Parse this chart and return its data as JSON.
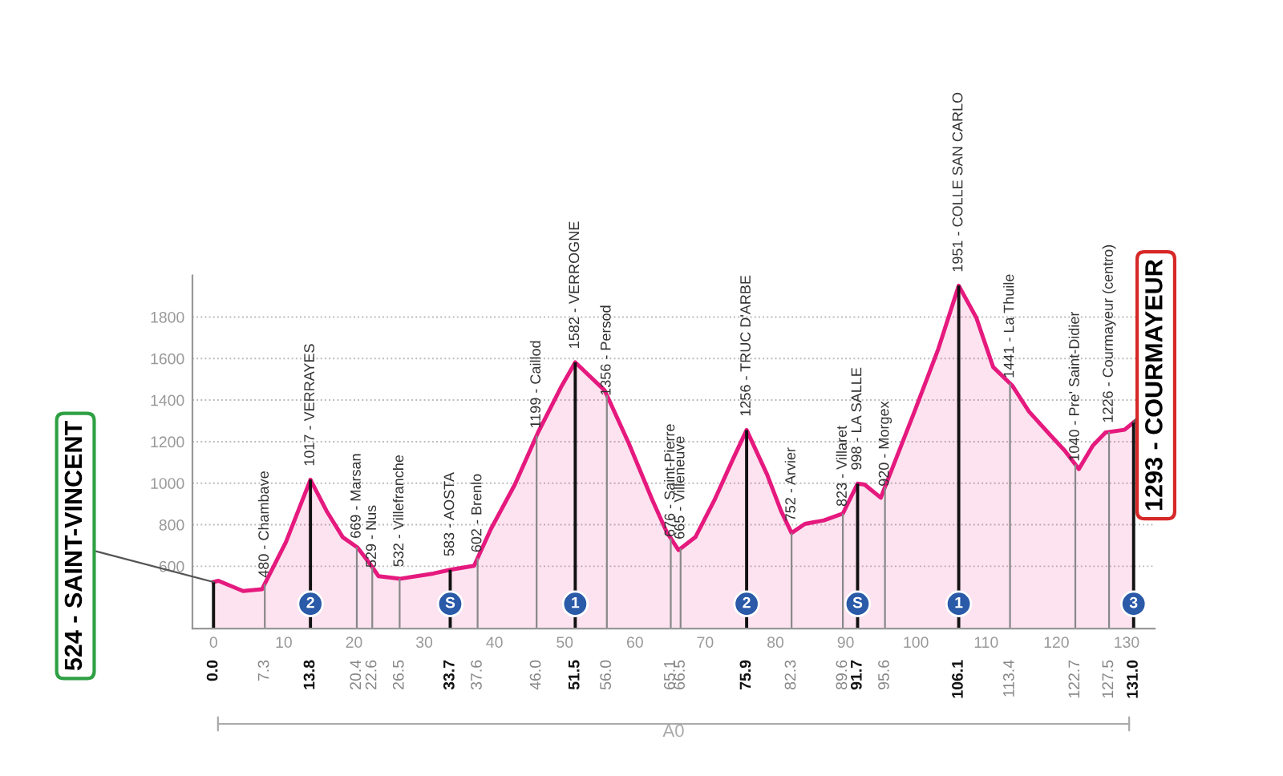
{
  "chart_data": {
    "type": "area",
    "x": [
      0.0,
      0.7,
      4.2,
      6.9,
      10.3,
      13.8,
      16.1,
      18.4,
      20.5,
      22.2,
      23.5,
      26.6,
      31.3,
      33.7,
      37.1,
      39.5,
      42.9,
      46.2,
      49.6,
      51.5,
      55.7,
      59.1,
      62.5,
      64.5,
      66.2,
      68.6,
      71.3,
      74.0,
      75.9,
      78.8,
      80.8,
      82.3,
      84.2,
      86.9,
      89.6,
      91.7,
      92.7,
      95.0,
      99.8,
      103.2,
      106.1,
      108.6,
      111.0,
      113.7,
      116.1,
      118.8,
      121.2,
      123.2,
      125.2,
      127.0,
      129.7,
      131.0
    ],
    "series": [
      {
        "color": "#e5197e",
        "values": [
          524,
          530,
          481,
          489,
          716,
          1017,
          866,
          740,
          690,
          615,
          552,
          540,
          565,
          583,
          602,
          780,
          993,
          1244,
          1470,
          1582,
          1446,
          1194,
          917,
          766,
          678,
          740,
          917,
          1119,
          1256,
          1043,
          866,
          760,
          804,
          821,
          854,
          998,
          993,
          930,
          1345,
          1647,
          1951,
          1797,
          1559,
          1471,
          1345,
          1244,
          1156,
          1068,
          1181,
          1244,
          1257,
          1293
        ]
      }
    ],
    "xlim": [
      -3,
      134
    ],
    "ylim": [
      300,
      2000
    ],
    "xticks": [
      0,
      10,
      20,
      30,
      40,
      50,
      60,
      70,
      80,
      90,
      100,
      110,
      120,
      130
    ],
    "yticks": [
      600,
      800,
      1000,
      1200,
      1400,
      1600,
      1800
    ],
    "grid": "y",
    "ref_lines": [
      {
        "axis": "x",
        "value": 0.0,
        "label": "0.0",
        "color": "#111111"
      },
      {
        "axis": "x",
        "value": 7.3,
        "label": "7.3",
        "color": "#888888"
      },
      {
        "axis": "x",
        "value": 13.8,
        "label": "13.8",
        "color": "#111111"
      },
      {
        "axis": "x",
        "value": 20.4,
        "label": "20.4",
        "color": "#888888"
      },
      {
        "axis": "x",
        "value": 22.6,
        "label": "22.6",
        "color": "#888888"
      },
      {
        "axis": "x",
        "value": 26.5,
        "label": "26.5",
        "color": "#888888"
      },
      {
        "axis": "x",
        "value": 33.7,
        "label": "33.7",
        "color": "#111111"
      },
      {
        "axis": "x",
        "value": 37.6,
        "label": "37.6",
        "color": "#888888"
      },
      {
        "axis": "x",
        "value": 46.0,
        "label": "46.0",
        "color": "#888888"
      },
      {
        "axis": "x",
        "value": 51.5,
        "label": "51.5",
        "color": "#111111"
      },
      {
        "axis": "x",
        "value": 56.0,
        "label": "56.0",
        "color": "#888888"
      },
      {
        "axis": "x",
        "value": 65.1,
        "label": "65.1",
        "color": "#888888"
      },
      {
        "axis": "x",
        "value": 66.5,
        "label": "66.5",
        "color": "#888888"
      },
      {
        "axis": "x",
        "value": 75.9,
        "label": "75.9",
        "color": "#111111"
      },
      {
        "axis": "x",
        "value": 82.3,
        "label": "82.3",
        "color": "#888888"
      },
      {
        "axis": "x",
        "value": 89.6,
        "label": "89.6",
        "color": "#888888"
      },
      {
        "axis": "x",
        "value": 91.7,
        "label": "91.7",
        "color": "#111111"
      },
      {
        "axis": "x",
        "value": 95.6,
        "label": "95.6",
        "color": "#888888"
      },
      {
        "axis": "x",
        "value": 106.1,
        "label": "106.1",
        "color": "#111111"
      },
      {
        "axis": "x",
        "value": 113.4,
        "label": "113.4",
        "color": "#888888"
      },
      {
        "axis": "x",
        "value": 122.7,
        "label": "122.7",
        "color": "#888888"
      },
      {
        "axis": "x",
        "value": 127.5,
        "label": "127.5",
        "color": "#888888"
      },
      {
        "axis": "x",
        "value": 131.0,
        "label": "131.0",
        "color": "#111111"
      }
    ],
    "annotations": [
      {
        "text": "524 - SAINT-VINCENT",
        "x": 0.0,
        "y": 524
      },
      {
        "text": "480 - Chambave",
        "x": 7.3,
        "y": 480
      },
      {
        "text": "1017 - VERRAYES",
        "x": 13.8,
        "y": 1017
      },
      {
        "text": "669 - Marsan",
        "x": 20.4,
        "y": 669
      },
      {
        "text": "529 - Nus",
        "x": 22.6,
        "y": 529
      },
      {
        "text": "532 - Villefranche",
        "x": 26.5,
        "y": 532
      },
      {
        "text": "583 - AOSTA",
        "x": 33.7,
        "y": 583
      },
      {
        "text": "602 - Brenlo",
        "x": 37.6,
        "y": 602
      },
      {
        "text": "1199 - Caillod",
        "x": 46.0,
        "y": 1199
      },
      {
        "text": "1582 - VERROGNE",
        "x": 51.5,
        "y": 1582
      },
      {
        "text": "1356 - Persod",
        "x": 56.0,
        "y": 1356
      },
      {
        "text": "676 - Saint-Pierre",
        "x": 65.1,
        "y": 676
      },
      {
        "text": "665 - Villeneuve",
        "x": 66.5,
        "y": 665
      },
      {
        "text": "1256 - TRUC D'ARBE",
        "x": 75.9,
        "y": 1256
      },
      {
        "text": "752 - Arvier",
        "x": 82.3,
        "y": 752
      },
      {
        "text": "823 - Villaret",
        "x": 89.6,
        "y": 823
      },
      {
        "text": "998 - LA SALLE",
        "x": 91.7,
        "y": 998
      },
      {
        "text": "920 - Morgex",
        "x": 95.6,
        "y": 920
      },
      {
        "text": "1951 - COLLE SAN CARLO",
        "x": 106.1,
        "y": 1951
      },
      {
        "text": "1441 - La Thuile",
        "x": 113.4,
        "y": 1441
      },
      {
        "text": "1040 - Pre' Saint-Didier",
        "x": 122.7,
        "y": 1040
      },
      {
        "text": "1226 - Courmayeur (centro)",
        "x": 127.5,
        "y": 1226
      },
      {
        "text": "1293 - COURMAYEUR",
        "x": 131.0,
        "y": 1293
      },
      {
        "text": "2",
        "x": 13.8
      },
      {
        "text": "S",
        "x": 33.7
      },
      {
        "text": "1",
        "x": 51.5
      },
      {
        "text": "2",
        "x": 75.9
      },
      {
        "text": "S",
        "x": 91.7
      },
      {
        "text": "1",
        "x": 106.1
      },
      {
        "text": "3",
        "x": 131.0
      },
      "A0"
    ]
  }
}
